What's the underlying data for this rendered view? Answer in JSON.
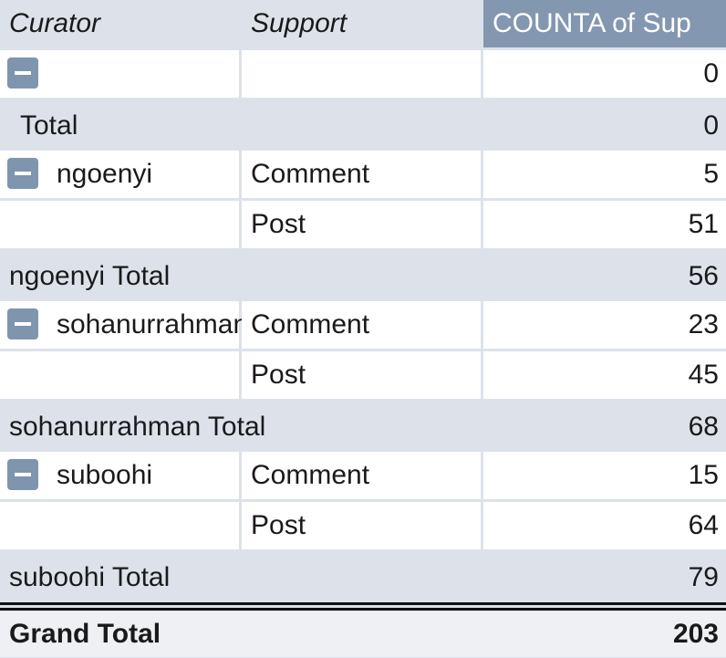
{
  "header": [
    "Curator",
    "Support",
    "COUNTA of Sup"
  ],
  "groups": [
    {
      "items": [
        {
          "count": 0
        }
      ],
      "total_label": "Total",
      "total": 0
    },
    {
      "curator": "ngoenyi",
      "items": [
        {
          "support": "Comment",
          "count": 5
        },
        {
          "support": "Post",
          "count": 51
        }
      ],
      "total_label": "ngoenyi Total",
      "total": 56
    },
    {
      "curator": "sohanurrahman",
      "items": [
        {
          "support": "Comment",
          "count": 23
        },
        {
          "support": "Post",
          "count": 45
        }
      ],
      "total_label": "sohanurrahman Total",
      "total": 68
    },
    {
      "curator": "suboohi",
      "items": [
        {
          "support": "Comment",
          "count": 15
        },
        {
          "support": "Post",
          "count": 64
        }
      ],
      "total_label": "suboohi Total",
      "total": 79
    }
  ],
  "grand_total_label": "Grand Total",
  "grand_total": 203
}
